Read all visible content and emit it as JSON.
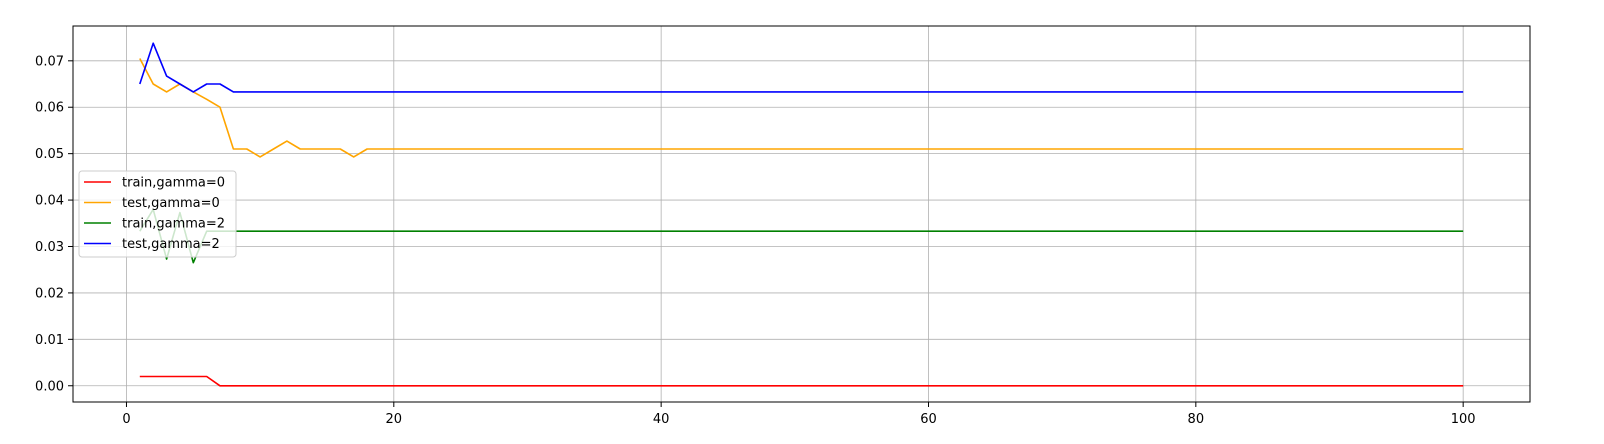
{
  "chart_data": {
    "type": "line",
    "title": "",
    "xlabel": "",
    "ylabel": "",
    "xlim": [
      -4,
      105
    ],
    "ylim": [
      -0.0035,
      0.0775
    ],
    "xticks": [
      0,
      20,
      40,
      60,
      80,
      100
    ],
    "xtick_labels": [
      "0",
      "20",
      "40",
      "60",
      "80",
      "100"
    ],
    "yticks": [
      0.0,
      0.01,
      0.02,
      0.03,
      0.04,
      0.05,
      0.06,
      0.07
    ],
    "ytick_labels": [
      "0.00",
      "0.01",
      "0.02",
      "0.03",
      "0.04",
      "0.05",
      "0.06",
      "0.07"
    ],
    "grid": true,
    "legend_position": "center-left",
    "series": [
      {
        "name": "train,gamma=0",
        "color": "#ff0000",
        "points": [
          [
            1,
            0.002
          ],
          [
            6,
            0.002
          ],
          [
            7,
            0.0
          ],
          [
            100,
            0.0
          ]
        ]
      },
      {
        "name": "test,gamma=0",
        "color": "#ffa500",
        "points": [
          [
            1,
            0.0705
          ],
          [
            2,
            0.065
          ],
          [
            3,
            0.0633
          ],
          [
            4,
            0.065
          ],
          [
            5,
            0.0633
          ],
          [
            6,
            0.0617
          ],
          [
            7,
            0.06
          ],
          [
            8,
            0.051
          ],
          [
            9,
            0.051
          ],
          [
            10,
            0.0493
          ],
          [
            11,
            0.051
          ],
          [
            12,
            0.0527
          ],
          [
            13,
            0.051
          ],
          [
            14,
            0.051
          ],
          [
            15,
            0.051
          ],
          [
            16,
            0.051
          ],
          [
            17,
            0.0493
          ],
          [
            18,
            0.051
          ],
          [
            100,
            0.051
          ]
        ]
      },
      {
        "name": "train,gamma=2",
        "color": "#008000",
        "points": [
          [
            1,
            0.0333
          ],
          [
            2,
            0.038
          ],
          [
            3,
            0.0273
          ],
          [
            4,
            0.0373
          ],
          [
            5,
            0.0265
          ],
          [
            6,
            0.0333
          ],
          [
            7,
            0.0333
          ],
          [
            100,
            0.0333
          ]
        ]
      },
      {
        "name": "test,gamma=2",
        "color": "#0000ff",
        "points": [
          [
            1,
            0.065
          ],
          [
            2,
            0.0738
          ],
          [
            3,
            0.0667
          ],
          [
            4,
            0.065
          ],
          [
            5,
            0.0633
          ],
          [
            6,
            0.065
          ],
          [
            7,
            0.065
          ],
          [
            8,
            0.0633
          ],
          [
            100,
            0.0633
          ]
        ]
      }
    ]
  }
}
